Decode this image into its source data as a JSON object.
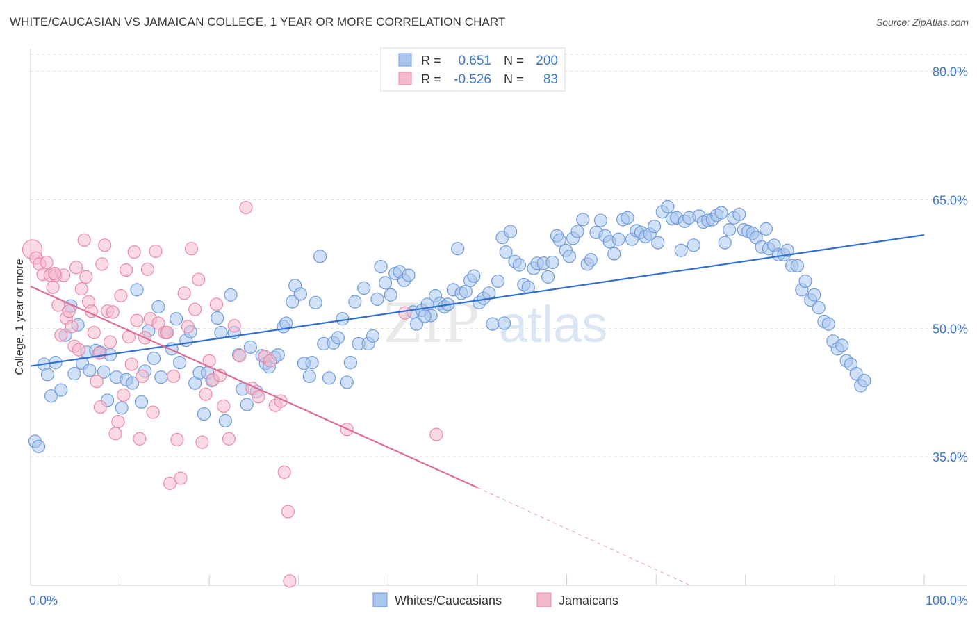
{
  "title": "WHITE/CAUCASIAN VS JAMAICAN COLLEGE, 1 YEAR OR MORE CORRELATION CHART",
  "source": "Source: ZipAtlas.com",
  "watermark": {
    "zip": "ZIP",
    "atlas": "atlas"
  },
  "colors": {
    "blue_fill": "#a9c6ef",
    "blue_stroke": "#6f9ad9",
    "blue_line": "#2f6fcf",
    "pink_fill": "#f5b9cc",
    "pink_stroke": "#e88aa8",
    "pink_line": "#e06b95",
    "axis_label": "#3b78cc",
    "grid": "#dddddd"
  },
  "legend_top": {
    "rows": [
      {
        "r_label": "R =",
        "r_value": "0.651",
        "n_label": "N =",
        "n_value": "200"
      },
      {
        "r_label": "R =",
        "r_value": "-0.526",
        "n_label": "N =",
        "n_value": "83"
      }
    ]
  },
  "legend_bottom": {
    "items": [
      "Whites/Caucasians",
      "Jamaicans"
    ]
  },
  "chart_data": {
    "type": "scatter",
    "title": "WHITE/CAUCASIAN VS JAMAICAN COLLEGE, 1 YEAR OR MORE CORRELATION CHART",
    "xlabel": "",
    "ylabel": "College, 1 year or more",
    "xlim": [
      0,
      100
    ],
    "ylim": [
      20,
      82
    ],
    "x_tick_labels": [
      {
        "value": 0,
        "label": "0.0%"
      },
      {
        "value": 100,
        "label": "100.0%"
      }
    ],
    "y_tick_labels": [
      {
        "value": 35,
        "label": "35.0%"
      },
      {
        "value": 50,
        "label": "50.0%"
      },
      {
        "value": 65,
        "label": "65.0%"
      },
      {
        "value": 80,
        "label": "80.0%"
      }
    ],
    "grid": "horizontal-dashed",
    "legend_placement": "bottom",
    "series": [
      {
        "name": "Whites/Caucasians",
        "r": 0.651,
        "n": 200,
        "trend": {
          "x": [
            0,
            100
          ],
          "y": [
            45.6,
            60.9
          ]
        },
        "points": [
          [
            0.5,
            36.8
          ],
          [
            0.9,
            36.2
          ],
          [
            1.5,
            45.8
          ],
          [
            1.9,
            44.6
          ],
          [
            2.3,
            42.1
          ],
          [
            2.8,
            46.0
          ],
          [
            3.4,
            42.8
          ],
          [
            3.9,
            49.2
          ],
          [
            4.5,
            52.6
          ],
          [
            4.9,
            44.7
          ],
          [
            5.3,
            50.4
          ],
          [
            5.8,
            45.9
          ],
          [
            6.3,
            47.2
          ],
          [
            6.6,
            45.1
          ],
          [
            7.3,
            47.4
          ],
          [
            7.8,
            47.2
          ],
          [
            8.2,
            44.9
          ],
          [
            8.6,
            41.6
          ],
          [
            8.9,
            46.9
          ],
          [
            9.6,
            44.3
          ],
          [
            10.2,
            40.7
          ],
          [
            10.7,
            44.0
          ],
          [
            11.4,
            43.6
          ],
          [
            11.9,
            54.5
          ],
          [
            12.4,
            41.4
          ],
          [
            12.8,
            45.0
          ],
          [
            13.2,
            49.7
          ],
          [
            13.8,
            46.5
          ],
          [
            14.3,
            52.5
          ],
          [
            14.6,
            44.3
          ],
          [
            15.2,
            49.5
          ],
          [
            15.8,
            47.6
          ],
          [
            16.3,
            51.1
          ],
          [
            16.7,
            46.0
          ],
          [
            17.4,
            48.6
          ],
          [
            17.9,
            49.6
          ],
          [
            18.4,
            43.6
          ],
          [
            18.9,
            44.8
          ],
          [
            19.4,
            40.0
          ],
          [
            19.8,
            44.8
          ],
          [
            20.3,
            43.9
          ],
          [
            20.9,
            51.2
          ],
          [
            21.3,
            49.5
          ],
          [
            21.8,
            39.2
          ],
          [
            22.4,
            53.9
          ],
          [
            22.8,
            49.5
          ],
          [
            23.3,
            46.9
          ],
          [
            23.7,
            42.9
          ],
          [
            24.2,
            41.1
          ],
          [
            24.6,
            47.8
          ],
          [
            25.3,
            42.6
          ],
          [
            25.9,
            46.8
          ],
          [
            26.3,
            45.9
          ],
          [
            26.7,
            45.5
          ],
          [
            27.3,
            46.6
          ],
          [
            27.7,
            46.9
          ],
          [
            28.3,
            50.2
          ],
          [
            28.6,
            50.6
          ],
          [
            29.3,
            53.1
          ],
          [
            29.6,
            55.0
          ],
          [
            30.2,
            54.0
          ],
          [
            30.6,
            45.9
          ],
          [
            31.2,
            44.4
          ],
          [
            31.9,
            53.0
          ],
          [
            32.4,
            58.4
          ],
          [
            32.8,
            48.2
          ],
          [
            33.4,
            44.2
          ],
          [
            33.9,
            48.3
          ],
          [
            34.4,
            48.9
          ],
          [
            34.9,
            51.1
          ],
          [
            35.4,
            43.7
          ],
          [
            35.8,
            46.0
          ],
          [
            36.3,
            53.1
          ],
          [
            36.7,
            48.2
          ],
          [
            37.3,
            54.7
          ],
          [
            37.8,
            48.2
          ],
          [
            38.3,
            49.1
          ],
          [
            38.8,
            53.4
          ],
          [
            39.2,
            57.2
          ],
          [
            39.7,
            55.3
          ],
          [
            40.3,
            53.9
          ],
          [
            40.8,
            56.4
          ],
          [
            41.3,
            56.6
          ],
          [
            41.8,
            55.6
          ],
          [
            42.3,
            56.2
          ],
          [
            42.8,
            51.9
          ],
          [
            43.2,
            50.5
          ],
          [
            43.8,
            52.1
          ],
          [
            44.4,
            52.8
          ],
          [
            44.8,
            51.5
          ],
          [
            45.3,
            53.8
          ],
          [
            45.8,
            52.9
          ],
          [
            46.3,
            52.5
          ],
          [
            46.7,
            52.8
          ],
          [
            47.3,
            54.5
          ],
          [
            47.8,
            59.3
          ],
          [
            48.2,
            54.1
          ],
          [
            48.7,
            54.3
          ],
          [
            49.2,
            55.6
          ],
          [
            49.6,
            56.1
          ],
          [
            50.2,
            53.0
          ],
          [
            50.7,
            53.5
          ],
          [
            51.3,
            54.1
          ],
          [
            51.7,
            50.5
          ],
          [
            52.3,
            55.5
          ],
          [
            52.8,
            60.6
          ],
          [
            53.2,
            58.9
          ],
          [
            53.7,
            61.3
          ],
          [
            54.2,
            57.8
          ],
          [
            54.7,
            57.4
          ],
          [
            55.2,
            55.1
          ],
          [
            55.7,
            54.8
          ],
          [
            56.3,
            57.0
          ],
          [
            56.7,
            57.6
          ],
          [
            57.4,
            57.6
          ],
          [
            57.9,
            56.0
          ],
          [
            58.4,
            57.7
          ],
          [
            58.9,
            60.8
          ],
          [
            59.2,
            60.3
          ],
          [
            59.9,
            59.1
          ],
          [
            60.3,
            58.4
          ],
          [
            60.7,
            60.5
          ],
          [
            61.2,
            61.3
          ],
          [
            61.8,
            62.7
          ],
          [
            62.3,
            57.5
          ],
          [
            62.7,
            58.0
          ],
          [
            63.3,
            61.2
          ],
          [
            63.8,
            62.6
          ],
          [
            64.3,
            60.8
          ],
          [
            64.8,
            60.1
          ],
          [
            65.3,
            58.7
          ],
          [
            65.8,
            60.4
          ],
          [
            66.3,
            62.7
          ],
          [
            66.8,
            62.9
          ],
          [
            67.3,
            60.4
          ],
          [
            67.8,
            61.4
          ],
          [
            68.3,
            61.2
          ],
          [
            68.8,
            60.7
          ],
          [
            69.3,
            61.0
          ],
          [
            69.8,
            61.9
          ],
          [
            70.2,
            60.0
          ],
          [
            70.7,
            63.6
          ],
          [
            71.3,
            64.2
          ],
          [
            71.8,
            62.8
          ],
          [
            72.3,
            62.9
          ],
          [
            72.8,
            59.1
          ],
          [
            73.2,
            62.5
          ],
          [
            73.7,
            62.9
          ],
          [
            74.2,
            59.7
          ],
          [
            74.8,
            63.1
          ],
          [
            75.3,
            62.4
          ],
          [
            75.8,
            62.6
          ],
          [
            76.3,
            62.7
          ],
          [
            76.8,
            63.2
          ],
          [
            77.3,
            63.5
          ],
          [
            77.7,
            60.0
          ],
          [
            78.2,
            61.5
          ],
          [
            78.7,
            62.9
          ],
          [
            79.3,
            63.3
          ],
          [
            79.8,
            61.5
          ],
          [
            80.3,
            61.3
          ],
          [
            80.8,
            61.1
          ],
          [
            81.2,
            60.6
          ],
          [
            81.8,
            59.5
          ],
          [
            82.3,
            61.6
          ],
          [
            82.6,
            59.3
          ],
          [
            83.2,
            59.7
          ],
          [
            83.7,
            58.6
          ],
          [
            84.3,
            58.6
          ],
          [
            84.7,
            59.1
          ],
          [
            85.2,
            57.3
          ],
          [
            85.8,
            57.3
          ],
          [
            86.3,
            54.5
          ],
          [
            86.7,
            55.5
          ],
          [
            87.3,
            53.3
          ],
          [
            87.7,
            53.9
          ],
          [
            88.2,
            52.4
          ],
          [
            88.8,
            50.8
          ],
          [
            89.3,
            50.5
          ],
          [
            89.8,
            48.5
          ],
          [
            90.3,
            47.6
          ],
          [
            90.8,
            48.0
          ],
          [
            91.3,
            46.2
          ],
          [
            91.8,
            45.8
          ],
          [
            92.4,
            44.7
          ],
          [
            92.9,
            43.3
          ],
          [
            93.3,
            43.9
          ],
          [
            53.0,
            50.6
          ],
          [
            44.1,
            51.4
          ],
          [
            31.5,
            46.0
          ]
        ]
      },
      {
        "name": "Jamaicans",
        "r": -0.526,
        "n": 83,
        "trend": {
          "x": [
            0,
            50
          ],
          "y": [
            54.9,
            31.4
          ]
        },
        "trend_dashed_extension": {
          "x": [
            50,
            74.0
          ],
          "y": [
            31.4,
            19.9
          ]
        },
        "points": [
          [
            0.2,
            59.2
          ],
          [
            0.6,
            58.2
          ],
          [
            1.0,
            57.5
          ],
          [
            1.4,
            56.3
          ],
          [
            1.8,
            57.7
          ],
          [
            2.2,
            56.2
          ],
          [
            2.5,
            54.8
          ],
          [
            2.8,
            56.2
          ],
          [
            3.1,
            52.7
          ],
          [
            3.4,
            49.2
          ],
          [
            3.7,
            56.2
          ],
          [
            4.0,
            51.2
          ],
          [
            4.3,
            52.0
          ],
          [
            4.6,
            50.2
          ],
          [
            4.9,
            47.9
          ],
          [
            5.1,
            57.1
          ],
          [
            5.4,
            47.5
          ],
          [
            5.7,
            54.6
          ],
          [
            6.0,
            60.3
          ],
          [
            6.2,
            56.0
          ],
          [
            6.5,
            53.1
          ],
          [
            6.8,
            52.0
          ],
          [
            7.1,
            49.5
          ],
          [
            7.4,
            43.8
          ],
          [
            7.7,
            47.1
          ],
          [
            8.0,
            57.5
          ],
          [
            8.3,
            59.7
          ],
          [
            8.6,
            52.0
          ],
          [
            8.9,
            48.4
          ],
          [
            9.2,
            51.9
          ],
          [
            9.5,
            37.7
          ],
          [
            9.8,
            39.1
          ],
          [
            10.1,
            53.8
          ],
          [
            10.4,
            42.2
          ],
          [
            10.7,
            56.8
          ],
          [
            11.0,
            49.0
          ],
          [
            11.3,
            45.8
          ],
          [
            11.6,
            58.9
          ],
          [
            11.9,
            50.9
          ],
          [
            12.2,
            37.1
          ],
          [
            12.5,
            44.4
          ],
          [
            12.8,
            48.9
          ],
          [
            13.1,
            56.9
          ],
          [
            13.4,
            51.1
          ],
          [
            13.7,
            40.2
          ],
          [
            14.0,
            59.0
          ],
          [
            14.3,
            50.6
          ],
          [
            15.0,
            49.5
          ],
          [
            15.3,
            49.5
          ],
          [
            15.6,
            31.9
          ],
          [
            16.0,
            44.4
          ],
          [
            16.4,
            37.0
          ],
          [
            16.8,
            32.5
          ],
          [
            17.2,
            54.1
          ],
          [
            17.6,
            50.2
          ],
          [
            18.0,
            59.3
          ],
          [
            18.4,
            52.2
          ],
          [
            18.8,
            55.7
          ],
          [
            19.2,
            36.7
          ],
          [
            19.6,
            42.3
          ],
          [
            20.0,
            46.2
          ],
          [
            20.4,
            44.0
          ],
          [
            20.8,
            52.8
          ],
          [
            21.2,
            44.5
          ],
          [
            21.6,
            40.9
          ],
          [
            22.2,
            37.1
          ],
          [
            22.8,
            50.3
          ],
          [
            23.4,
            46.8
          ],
          [
            24.1,
            64.1
          ],
          [
            24.8,
            43.0
          ],
          [
            25.5,
            42.0
          ],
          [
            26.2,
            46.7
          ],
          [
            26.8,
            46.2
          ],
          [
            27.4,
            41.0
          ],
          [
            28.0,
            41.5
          ],
          [
            28.4,
            33.2
          ],
          [
            28.8,
            28.6
          ],
          [
            29.0,
            20.5
          ],
          [
            35.4,
            38.2
          ],
          [
            41.9,
            51.8
          ],
          [
            45.4,
            37.6
          ],
          [
            2.7,
            56.4
          ],
          [
            7.8,
            40.8
          ]
        ]
      }
    ]
  }
}
